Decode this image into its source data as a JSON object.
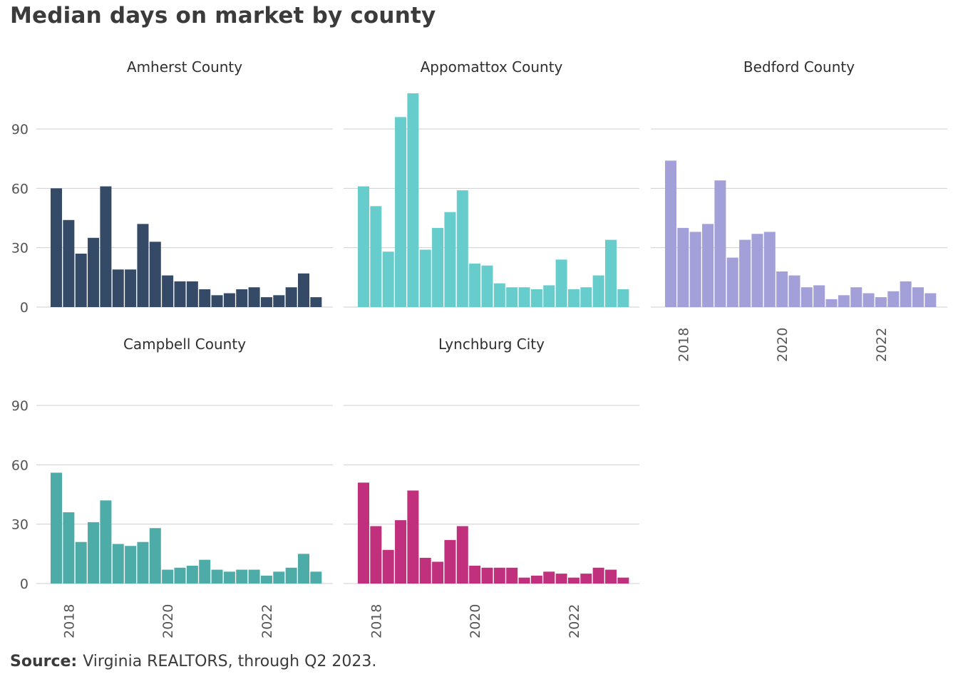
{
  "title": "Median days on market by county",
  "source": {
    "label": "Source:",
    "text": "Virginia REALTORS, through Q2 2023."
  },
  "chart_data": {
    "type": "bar",
    "title": "Median days on market by county",
    "xlabel": "",
    "ylabel": "",
    "ylim": [
      0,
      110
    ],
    "yticks": [
      0,
      30,
      60,
      90
    ],
    "x_tick_labels": [
      "2018",
      "2020",
      "2022"
    ],
    "x_tick_positions": [
      2018,
      2020,
      2022
    ],
    "x_start": 2017.75,
    "x_step": 0.25,
    "grid": true,
    "layout": "facet grid, 3 columns",
    "panels": [
      {
        "name": "Amherst County",
        "color": "#344a67",
        "values": [
          60,
          44,
          27,
          35,
          61,
          19,
          19,
          42,
          33,
          16,
          13,
          13,
          9,
          6,
          7,
          9,
          10,
          5,
          6,
          10,
          17,
          5
        ]
      },
      {
        "name": "Appomattox County",
        "color": "#66cccc",
        "values": [
          61,
          51,
          28,
          96,
          108,
          29,
          40,
          48,
          59,
          22,
          21,
          12,
          10,
          10,
          9,
          11,
          24,
          9,
          10,
          16,
          34,
          9
        ]
      },
      {
        "name": "Bedford County",
        "color": "#a39fd8",
        "values": [
          74,
          40,
          38,
          42,
          64,
          25,
          34,
          37,
          38,
          18,
          16,
          10,
          11,
          4,
          6,
          10,
          7,
          5,
          8,
          13,
          10,
          7
        ]
      },
      {
        "name": "Campbell County",
        "color": "#4eaca8",
        "values": [
          56,
          36,
          21,
          31,
          42,
          20,
          19,
          21,
          28,
          7,
          8,
          9,
          12,
          7,
          6,
          7,
          7,
          4,
          6,
          8,
          15,
          6
        ]
      },
      {
        "name": "Lynchburg City",
        "color": "#c0307d",
        "values": [
          51,
          29,
          17,
          32,
          47,
          13,
          11,
          22,
          29,
          9,
          8,
          8,
          8,
          3,
          4,
          6,
          5,
          3,
          5,
          8,
          7,
          3
        ]
      }
    ]
  }
}
